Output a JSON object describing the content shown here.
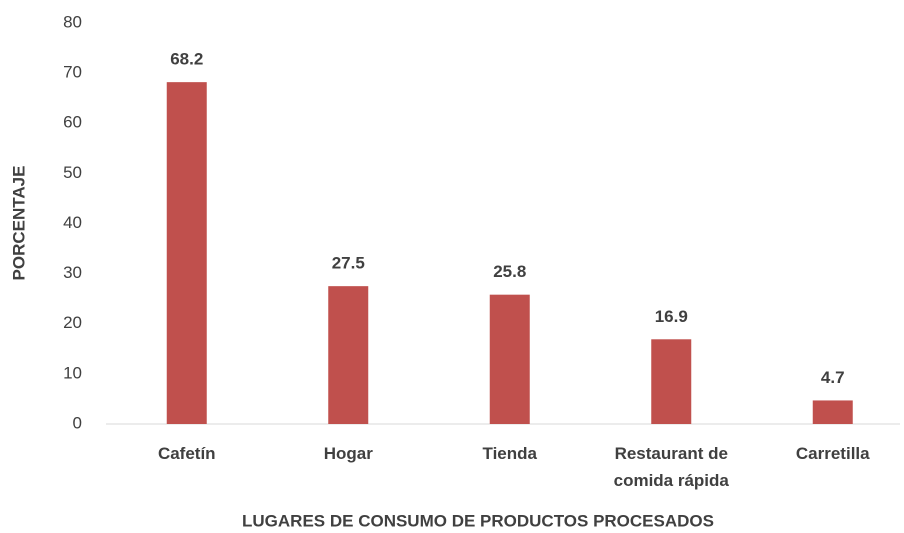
{
  "chart_data": {
    "type": "bar",
    "categories": [
      "Cafetín",
      "Hogar",
      "Tienda",
      "Restaurant de comida rápida",
      "Carretilla"
    ],
    "values": [
      68.2,
      27.5,
      25.8,
      16.9,
      4.7
    ],
    "color": "#c0504d",
    "ylim": [
      0,
      80
    ],
    "yticks": [
      0,
      10,
      20,
      30,
      40,
      50,
      60,
      70,
      80
    ],
    "grid": false,
    "xlabel": "LUGARES DE CONSUMO DE PRODUCTOS PROCESADOS",
    "ylabel": "PORCENTAJE"
  }
}
